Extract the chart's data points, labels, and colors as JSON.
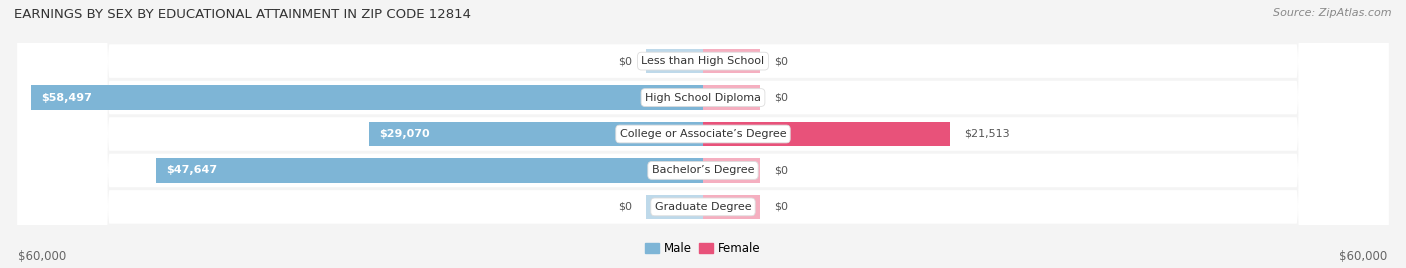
{
  "title": "EARNINGS BY SEX BY EDUCATIONAL ATTAINMENT IN ZIP CODE 12814",
  "source": "Source: ZipAtlas.com",
  "categories": [
    "Less than High School",
    "High School Diploma",
    "College or Associate’s Degree",
    "Bachelor’s Degree",
    "Graduate Degree"
  ],
  "male_values": [
    0,
    58497,
    29070,
    47647,
    0
  ],
  "female_values": [
    0,
    0,
    21513,
    0,
    0
  ],
  "female_stub_values": [
    5000,
    5000,
    21513,
    5000,
    5000
  ],
  "male_stub_values": [
    5000,
    58497,
    29070,
    47647,
    5000
  ],
  "max_value": 60000,
  "male_color": "#7eb5d6",
  "male_color_strong": "#5a9fc2",
  "female_color": "#f5afc0",
  "female_color_strong": "#e8527a",
  "row_bg_color": "#e8e8e8",
  "row_bg_odd": "#f0f0f0",
  "bg_color": "#f4f4f4",
  "axis_label_left": "$60,000",
  "axis_label_right": "$60,000",
  "legend_male": "Male",
  "legend_female": "Female",
  "title_fontsize": 9.5,
  "source_fontsize": 8,
  "bar_label_fontsize": 8,
  "category_fontsize": 8,
  "axis_fontsize": 8.5
}
